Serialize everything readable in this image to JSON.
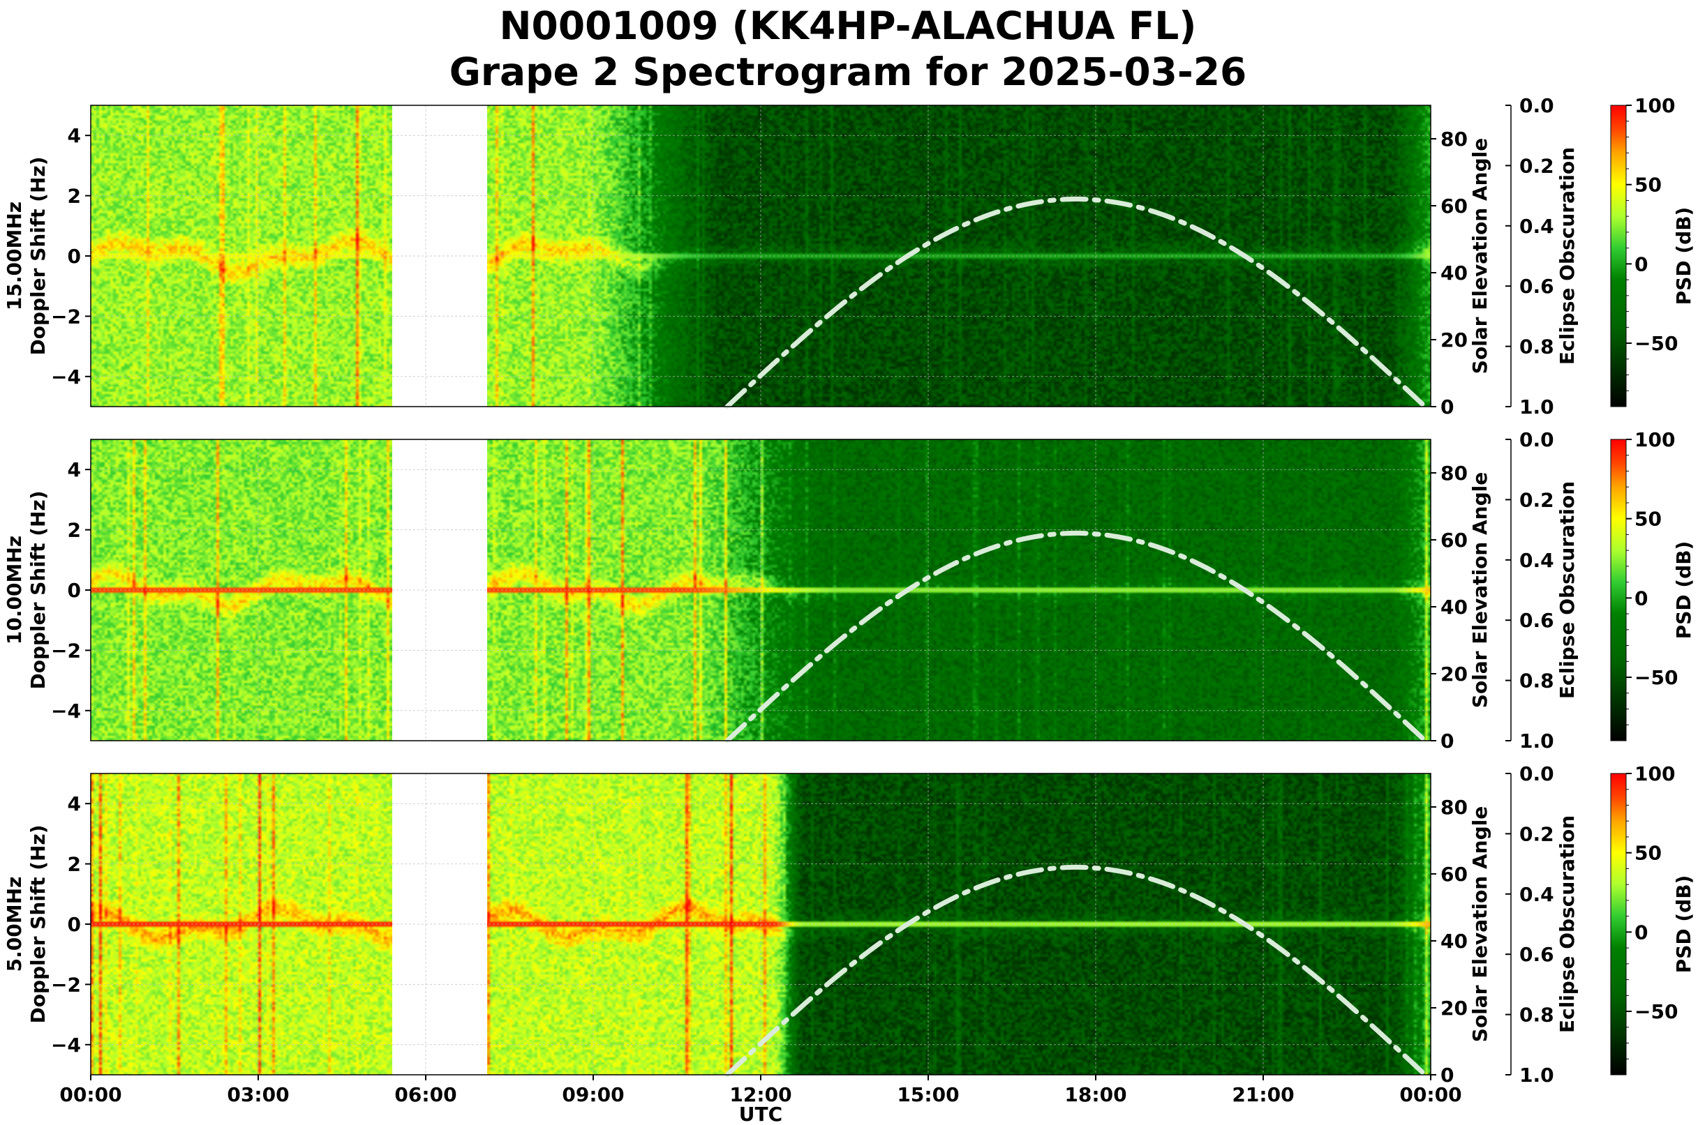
{
  "chart_data": {
    "type": "heatmap",
    "title": [
      "N0001009 (KK4HP-ALACHUA FL)",
      "Grape 2 Spectrogram for 2025-03-26"
    ],
    "xlabel": "UTC",
    "x_ticks": [
      "00:00",
      "03:00",
      "06:00",
      "09:00",
      "12:00",
      "15:00",
      "18:00",
      "21:00",
      "00:00"
    ],
    "x_range_hours": [
      0,
      24
    ],
    "data_gap_hours": [
      5.4,
      7.1
    ],
    "panels": [
      {
        "name": "15MHz",
        "ylabel": [
          "15.00MHz",
          "Doppler Shift (Hz)"
        ],
        "ylim": [
          -5,
          5
        ],
        "yticks": [
          4,
          2,
          0,
          -2,
          -4
        ],
        "ytick_labels": [
          "4",
          "2",
          "0",
          "−2",
          "−4"
        ],
        "right_ylabel": "Solar Elevation Angle",
        "right_ylim": [
          0,
          90
        ],
        "right_yticks": [
          0,
          20,
          40,
          60,
          80
        ],
        "eclipse_label": "Eclipse Obscuration",
        "eclipse_ticks": [
          "0.0",
          "0.2",
          "0.4",
          "0.6",
          "0.8",
          "1.0"
        ],
        "colorbar_label": "PSD (dB)",
        "colorbar_range": [
          -90,
          100
        ],
        "colorbar_ticks": [
          "100",
          "50",
          "0",
          "−50"
        ],
        "colorbar_values": [
          100,
          50,
          0,
          -50
        ],
        "night_day_transition_hours": [
          8.7,
          11.5
        ],
        "daytime_level": 0.2,
        "nighttime_level": 0.62,
        "carrier_intensity": 0.72
      },
      {
        "name": "10MHz",
        "ylabel": [
          "10.00MHz",
          "Doppler Shift (Hz)"
        ],
        "ylim": [
          -5,
          5
        ],
        "yticks": [
          4,
          2,
          0,
          -2,
          -4
        ],
        "ytick_labels": [
          "4",
          "2",
          "0",
          "−2",
          "−4"
        ],
        "right_ylabel": "Solar Elevation Angle",
        "right_ylim": [
          0,
          90
        ],
        "right_yticks": [
          0,
          20,
          40,
          60,
          80
        ],
        "eclipse_label": "Eclipse Obscuration",
        "eclipse_ticks": [
          "0.0",
          "0.2",
          "0.4",
          "0.6",
          "0.8",
          "1.0"
        ],
        "colorbar_label": "PSD (dB)",
        "colorbar_range": [
          -90,
          100
        ],
        "colorbar_ticks": [
          "100",
          "50",
          "0",
          "−50"
        ],
        "colorbar_values": [
          100,
          50,
          0,
          -50
        ],
        "night_day_transition_hours": [
          10.5,
          13.5
        ],
        "daytime_level": 0.3,
        "nighttime_level": 0.6,
        "carrier_intensity": 0.92
      },
      {
        "name": "5MHz",
        "ylabel": [
          "5.00MHz",
          "Doppler Shift (Hz)"
        ],
        "ylim": [
          -5,
          5
        ],
        "yticks": [
          4,
          2,
          0,
          -2,
          -4
        ],
        "ytick_labels": [
          "4",
          "2",
          "0",
          "−2",
          "−4"
        ],
        "right_ylabel": "Solar Elevation Angle",
        "right_ylim": [
          0,
          90
        ],
        "right_yticks": [
          0,
          20,
          40,
          60,
          80
        ],
        "eclipse_label": "Eclipse Obscuration",
        "eclipse_ticks": [
          "0.0",
          "0.2",
          "0.4",
          "0.6",
          "0.8",
          "1.0"
        ],
        "colorbar_label": "PSD (dB)",
        "colorbar_range": [
          -90,
          100
        ],
        "colorbar_ticks": [
          "100",
          "50",
          "0",
          "−50"
        ],
        "colorbar_values": [
          100,
          50,
          0,
          -50
        ],
        "night_day_transition_hours": [
          12.2,
          12.8
        ],
        "daytime_level": 0.2,
        "nighttime_level": 0.66,
        "carrier_intensity": 0.95
      }
    ],
    "solar_elevation": {
      "style": "dash-dot",
      "color": "#d9ecd9",
      "sunrise_hour": 11.4,
      "noon_hour": 17.65,
      "sunset_hour": 23.9,
      "peak_deg": 62
    },
    "colormap": [
      "#000000",
      "#006400",
      "#008000",
      "#32cd32",
      "#adff2f",
      "#ffff00",
      "#ffa500",
      "#ff4500",
      "#ff0000"
    ],
    "colormap_stops_db": [
      -90,
      -40,
      -10,
      10,
      30,
      50,
      70,
      85,
      100
    ]
  }
}
